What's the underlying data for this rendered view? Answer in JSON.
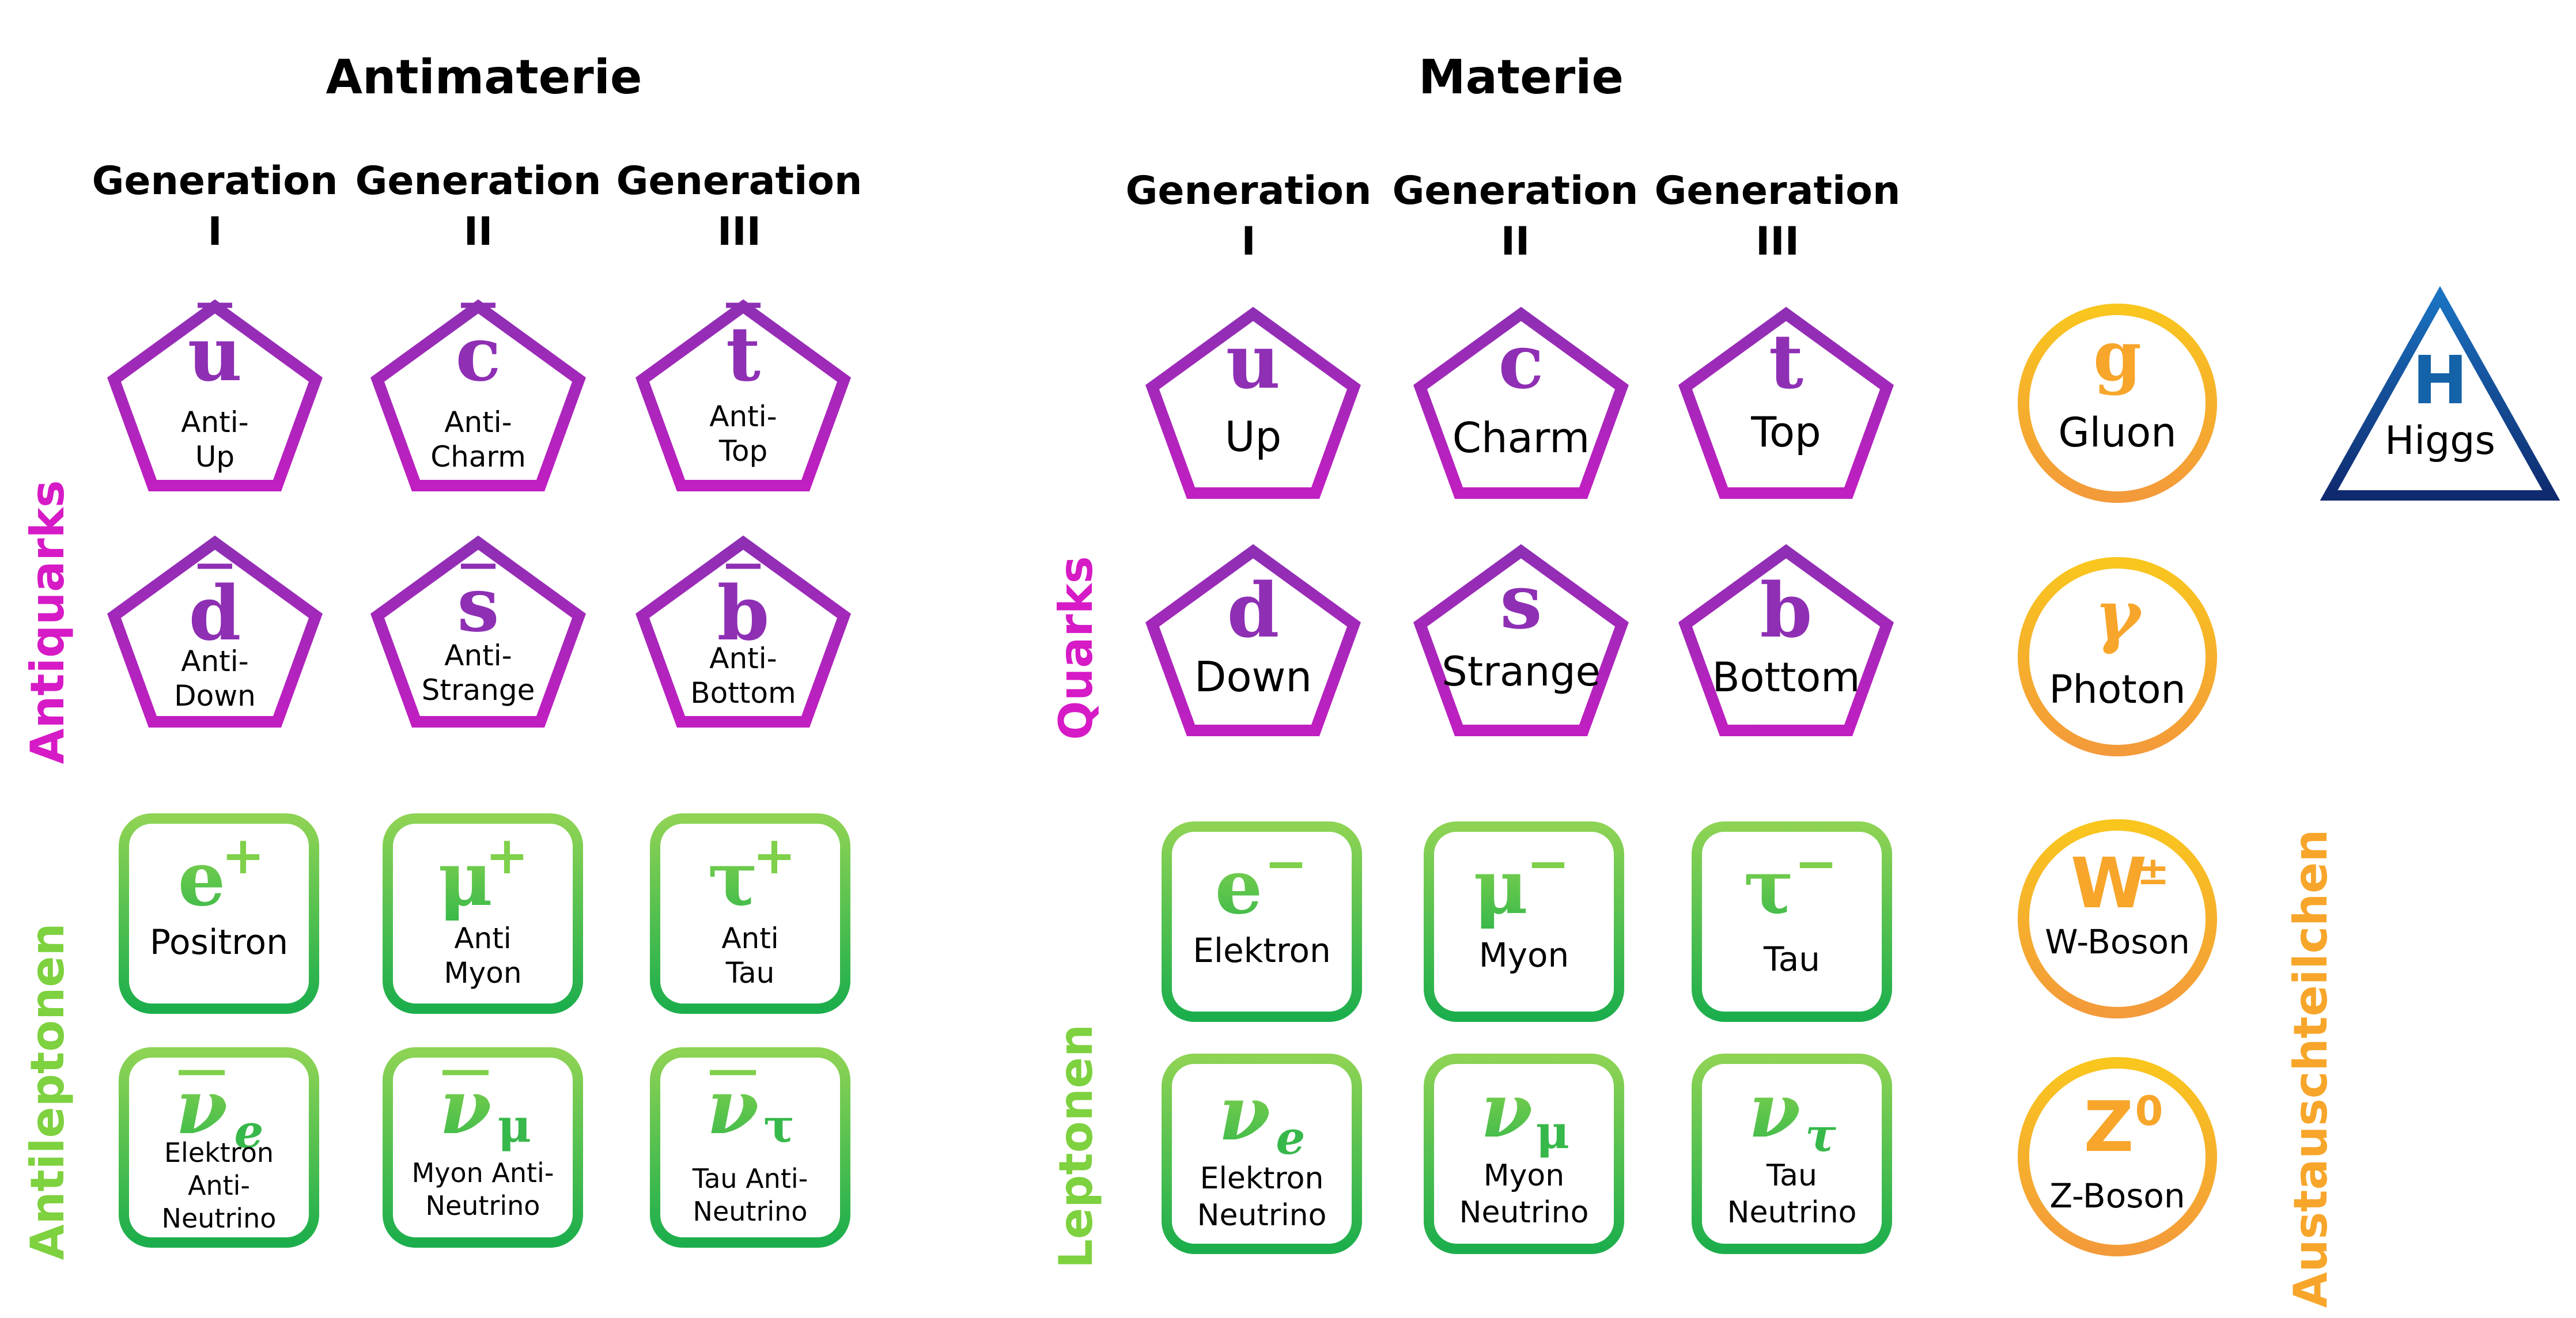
{
  "headers": {
    "antimatter": "Antimaterie",
    "matter": "Materie",
    "gen_word": "Generation",
    "gen_numerals": [
      "I",
      "II",
      "III"
    ]
  },
  "row_labels": {
    "antiquarks": "Antiquarks",
    "antileptons": "Antileptonen",
    "quarks": "Quarks",
    "leptons": "Leptonen",
    "bosons": "Austauschteilchen"
  },
  "colors": {
    "quark_purple": "#8e2fb4",
    "antiquark_label": "#d61ac6",
    "lepton_green": "#35b94a",
    "lepton_label": "#7ed13f",
    "boson_orange": "#f7a62b",
    "higgs_blue": "#1462a8"
  },
  "antiquarks": {
    "up": {
      "symbol": "u",
      "label": "Anti-\nUp"
    },
    "charm": {
      "symbol": "c",
      "label": "Anti-\nCharm"
    },
    "top": {
      "symbol": "t",
      "label": "Anti-\nTop"
    },
    "down": {
      "symbol": "d",
      "label": "Anti-\nDown"
    },
    "strange": {
      "symbol": "s",
      "label": "Anti-\nStrange"
    },
    "bottom": {
      "symbol": "b",
      "label": "Anti-\nBottom"
    }
  },
  "quarks": {
    "up": {
      "symbol": "u",
      "label": "Up"
    },
    "charm": {
      "symbol": "c",
      "label": "Charm"
    },
    "top": {
      "symbol": "t",
      "label": "Top"
    },
    "down": {
      "symbol": "d",
      "label": "Down"
    },
    "strange": {
      "symbol": "s",
      "label": "Strange"
    },
    "bottom": {
      "symbol": "b",
      "label": "Bottom"
    }
  },
  "antileptons": {
    "positron": {
      "symbol": "e",
      "sup": "+",
      "label": "Positron"
    },
    "antimuon": {
      "symbol": "μ",
      "sup": "+",
      "label": "Anti\nMyon"
    },
    "antitau": {
      "symbol": "τ",
      "sup": "+",
      "label": "Anti\nTau"
    },
    "anti_nu_e": {
      "symbol": "ν",
      "sub": "e",
      "label": "Elektron\nAnti-\nNeutrino"
    },
    "anti_nu_mu": {
      "symbol": "ν",
      "sub": "μ",
      "label": "Myon Anti-\nNeutrino"
    },
    "anti_nu_tau": {
      "symbol": "ν",
      "sub": "τ",
      "label": "Tau Anti-\nNeutrino"
    }
  },
  "leptons": {
    "electron": {
      "symbol": "e",
      "sup": "−",
      "label": "Elektron"
    },
    "muon": {
      "symbol": "μ",
      "sup": "−",
      "label": "Myon"
    },
    "tau": {
      "symbol": "τ",
      "sup": "−",
      "label": "Tau"
    },
    "nu_e": {
      "symbol": "ν",
      "sub": "e",
      "label": "Elektron\nNeutrino"
    },
    "nu_mu": {
      "symbol": "ν",
      "sub": "μ",
      "label": "Myon\nNeutrino"
    },
    "nu_tau": {
      "symbol": "ν",
      "sub": "τ",
      "label": "Tau\nNeutrino"
    }
  },
  "bosons": {
    "gluon": {
      "symbol": "g",
      "label": "Gluon"
    },
    "photon": {
      "symbol": "γ",
      "label": "Photon"
    },
    "w": {
      "symbol": "W",
      "sup": "±",
      "label": "W-Boson"
    },
    "z": {
      "symbol": "Z",
      "sup": "0",
      "label": "Z-Boson"
    }
  },
  "higgs": {
    "symbol": "H",
    "label": "Higgs"
  }
}
